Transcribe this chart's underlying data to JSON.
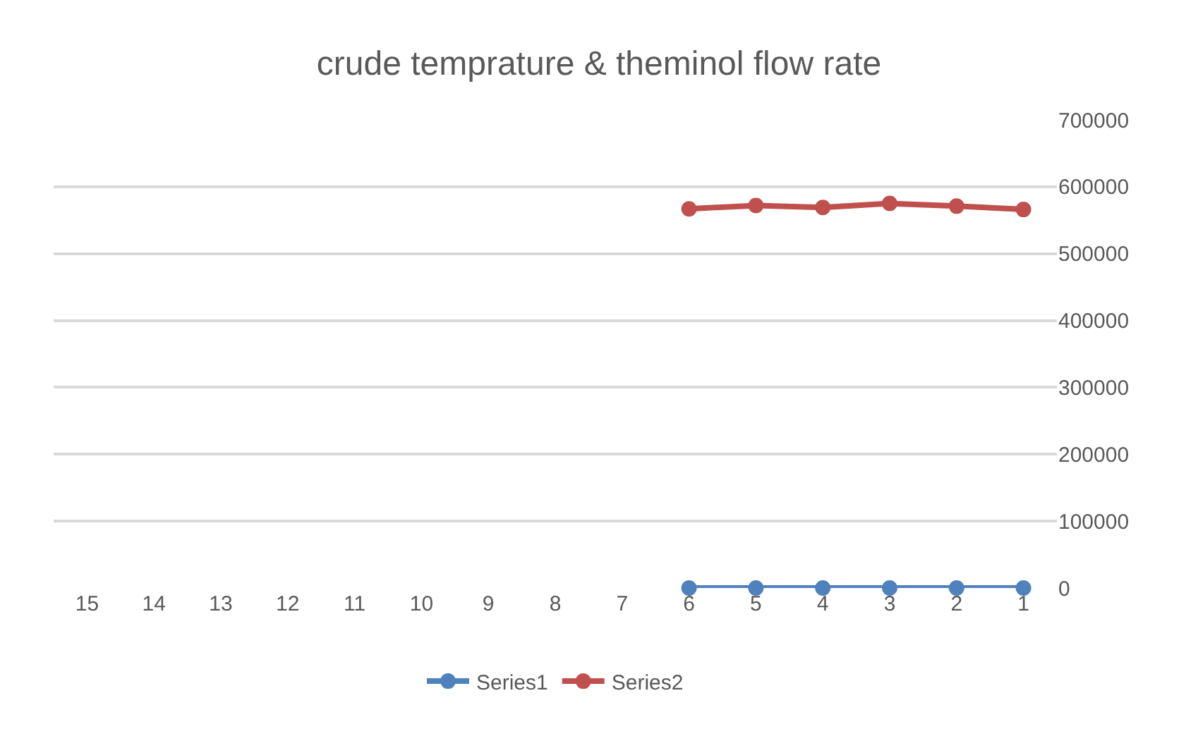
{
  "chart_data": {
    "type": "line",
    "title": "crude temprature & theminol flow rate",
    "categories": [
      "15",
      "14",
      "13",
      "12",
      "11",
      "10",
      "9",
      "8",
      "7",
      "6",
      "5",
      "4",
      "3",
      "2",
      "1"
    ],
    "series": [
      {
        "name": "Series1",
        "color": "#4f81bd",
        "values": [
          null,
          null,
          null,
          null,
          null,
          null,
          null,
          null,
          null,
          0,
          0,
          0,
          0,
          0,
          0
        ]
      },
      {
        "name": "Series2",
        "color": "#c0504d",
        "values": [
          null,
          null,
          null,
          null,
          null,
          null,
          null,
          null,
          null,
          567000,
          572000,
          569000,
          575000,
          571000,
          566000
        ]
      }
    ],
    "ylim": [
      0,
      700000
    ],
    "yticks": [
      0,
      100000,
      200000,
      300000,
      400000,
      500000,
      600000,
      700000
    ],
    "grid": "y",
    "legend": "bottom",
    "marker": "circle",
    "line_style": "solid"
  }
}
